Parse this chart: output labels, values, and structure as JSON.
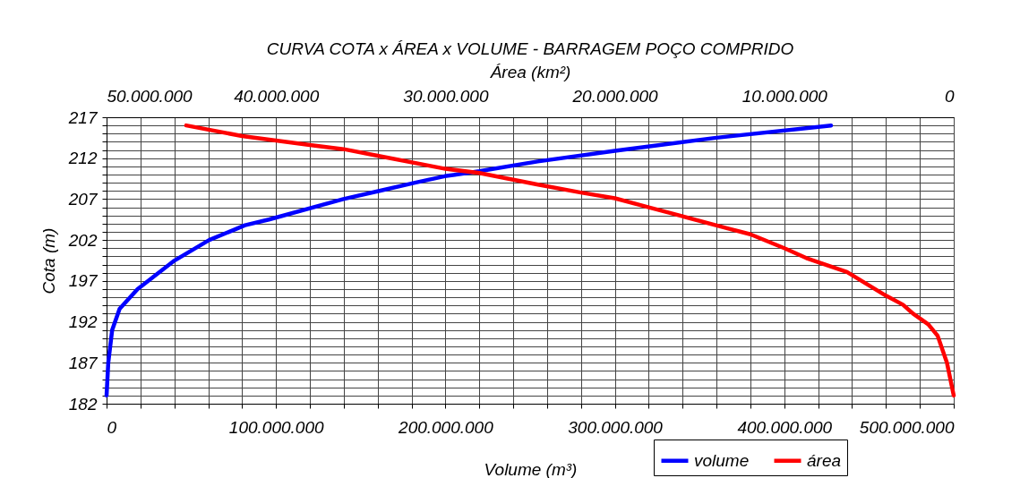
{
  "chart_data": {
    "type": "line",
    "title": "CURVA COTA x ÁREA x VOLUME - BARRAGEM POÇO COMPRIDO",
    "xlabel": "Volume (m³)",
    "x2label": "Área (km²)",
    "ylabel": "Cota (m)",
    "xlim": [
      0,
      500000000
    ],
    "xticks": [
      {
        "value": 0,
        "label": "0"
      },
      {
        "value": 20000000,
        "label": null
      },
      {
        "value": 40000000,
        "label": null
      },
      {
        "value": 60000000,
        "label": null
      },
      {
        "value": 80000000,
        "label": null
      },
      {
        "value": 100000000,
        "label": "100.000.000"
      },
      {
        "value": 120000000,
        "label": null
      },
      {
        "value": 140000000,
        "label": null
      },
      {
        "value": 160000000,
        "label": null
      },
      {
        "value": 180000000,
        "label": null
      },
      {
        "value": 200000000,
        "label": "200.000.000"
      },
      {
        "value": 220000000,
        "label": null
      },
      {
        "value": 240000000,
        "label": null
      },
      {
        "value": 260000000,
        "label": null
      },
      {
        "value": 280000000,
        "label": null
      },
      {
        "value": 300000000,
        "label": "300.000.000"
      },
      {
        "value": 320000000,
        "label": null
      },
      {
        "value": 340000000,
        "label": null
      },
      {
        "value": 360000000,
        "label": null
      },
      {
        "value": 380000000,
        "label": null
      },
      {
        "value": 400000000,
        "label": "400.000.000"
      },
      {
        "value": 420000000,
        "label": null
      },
      {
        "value": 440000000,
        "label": null
      },
      {
        "value": 460000000,
        "label": null
      },
      {
        "value": 480000000,
        "label": null
      },
      {
        "value": 500000000,
        "label": "500.000.000"
      }
    ],
    "x2lim": [
      50000000,
      0
    ],
    "x2ticks": [
      {
        "value": 50000000,
        "label": "50.000.000"
      },
      {
        "value": 40000000,
        "label": "40.000.000"
      },
      {
        "value": 30000000,
        "label": "30.000.000"
      },
      {
        "value": 20000000,
        "label": "20.000.000"
      },
      {
        "value": 10000000,
        "label": "10.000.000"
      },
      0
    ],
    "ylim": [
      182,
      217
    ],
    "yticks": [
      182,
      {
        "value": 183,
        "label": null
      },
      {
        "value": 184,
        "label": null
      },
      {
        "value": 185,
        "label": null
      },
      {
        "value": 186,
        "label": null
      },
      187,
      {
        "value": 188,
        "label": null
      },
      {
        "value": 189,
        "label": null
      },
      {
        "value": 190,
        "label": null
      },
      {
        "value": 191,
        "label": null
      },
      192,
      {
        "value": 193,
        "label": null
      },
      {
        "value": 194,
        "label": null
      },
      {
        "value": 195,
        "label": null
      },
      {
        "value": 196,
        "label": null
      },
      197,
      {
        "value": 198,
        "label": null
      },
      {
        "value": 199,
        "label": null
      },
      {
        "value": 200,
        "label": null
      },
      {
        "value": 201,
        "label": null
      },
      202,
      {
        "value": 203,
        "label": null
      },
      {
        "value": 204,
        "label": null
      },
      {
        "value": 205,
        "label": null
      },
      {
        "value": 206,
        "label": null
      },
      207,
      {
        "value": 208,
        "label": null
      },
      {
        "value": 209,
        "label": null
      },
      {
        "value": 210,
        "label": null
      },
      {
        "value": 211,
        "label": null
      },
      212,
      {
        "value": 213,
        "label": null
      },
      {
        "value": 214,
        "label": null
      },
      {
        "value": 215,
        "label": null
      },
      {
        "value": 216,
        "label": null
      },
      217
    ],
    "grid": true,
    "legend": "bottom right",
    "marker": "none",
    "line_style": "solid",
    "series": [
      {
        "name": "volume",
        "color": "#0000ff",
        "x": [
          0,
          1000000,
          3300000,
          7700000,
          18300000,
          39400000,
          60600000,
          81700000,
          95800000,
          139800000,
          161000000,
          182000000,
          199600000,
          220000000,
          254400000,
          300000000,
          359900000,
          427600000
        ],
        "values": [
          183,
          187,
          191,
          193.6,
          196,
          199.4,
          202,
          203.8,
          204.5,
          207,
          208,
          209,
          209.8,
          210.4,
          211.6,
          212.9,
          214.5,
          216
        ]
      },
      {
        "name": "área",
        "color": "#ff0000",
        "axis": "x2",
        "x": [
          45300000,
          42000000,
          38000000,
          36000000,
          34000000,
          30000000,
          28000000,
          24600000,
          22000000,
          20000000,
          18000000,
          16000000,
          13300000,
          12000000,
          10000000,
          8700000,
          6300000,
          4000000,
          3000000,
          2400000,
          1500000,
          950000,
          400000,
          0
        ],
        "values": [
          216,
          214.7,
          213.6,
          213.1,
          212.3,
          210.7,
          210.2,
          208.8,
          207.8,
          207.1,
          206,
          204.9,
          203.4,
          202.7,
          201,
          199.8,
          198.1,
          195.2,
          194.1,
          193,
          191.7,
          190.3,
          187,
          183
        ]
      }
    ]
  }
}
